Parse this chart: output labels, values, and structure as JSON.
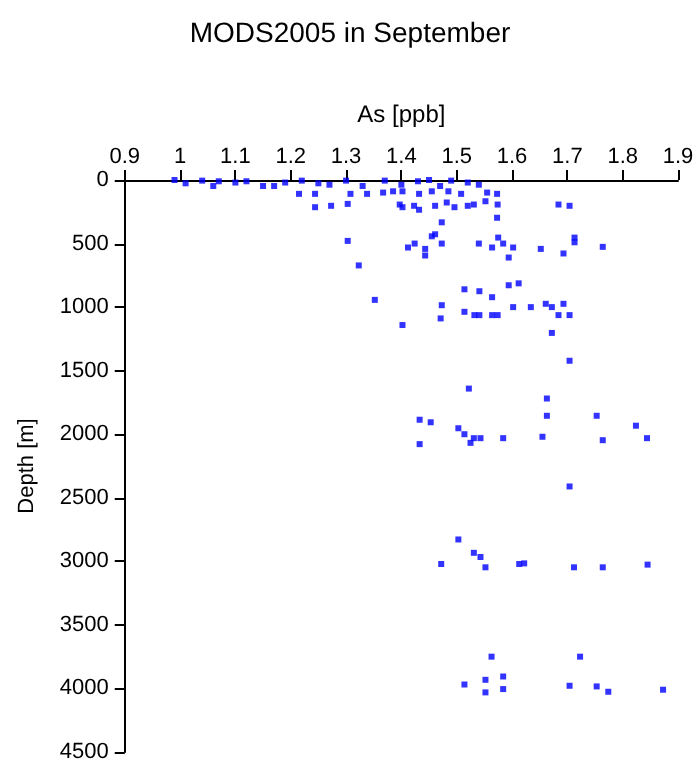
{
  "chart_data": {
    "type": "scatter",
    "title": "MODS2005 in September",
    "xlabel": "As [ppb]",
    "ylabel": "Depth [m]",
    "xlim": [
      0.9,
      1.9
    ],
    "xticks": [
      0.9,
      1,
      1.1,
      1.2,
      1.3,
      1.4,
      1.5,
      1.6,
      1.7,
      1.8,
      1.9
    ],
    "ylim": [
      4500,
      0
    ],
    "yticks": [
      0,
      500,
      1000,
      1500,
      2000,
      2500,
      3000,
      3500,
      4000,
      4500
    ],
    "grid": false,
    "marker": "square",
    "series": [
      {
        "color": "#0000ff",
        "x": [
          0.99,
          1.01,
          1.04,
          1.06,
          1.07,
          1.1,
          1.12,
          1.15,
          1.17,
          1.19,
          1.22,
          1.25,
          1.27,
          1.3,
          1.33,
          1.37,
          1.4,
          1.43,
          1.45,
          1.47,
          1.49,
          1.52,
          1.54,
          1.215,
          1.244,
          1.308,
          1.338,
          1.367,
          1.385,
          1.402,
          1.432,
          1.455,
          1.485,
          1.508,
          1.555,
          1.573,
          1.244,
          1.273,
          1.303,
          1.397,
          1.402,
          1.423,
          1.432,
          1.461,
          1.482,
          1.496,
          1.52,
          1.531,
          1.552,
          1.574,
          1.684,
          1.704,
          1.473,
          1.573,
          1.461,
          1.455,
          1.473,
          1.303,
          1.412,
          1.424,
          1.443,
          1.443,
          1.54,
          1.564,
          1.575,
          1.584,
          1.602,
          1.594,
          1.652,
          1.693,
          1.713,
          1.713,
          1.764,
          1.323,
          1.352,
          1.514,
          1.541,
          1.594,
          1.612,
          1.564,
          1.473,
          1.471,
          1.514,
          1.532,
          1.541,
          1.564,
          1.574,
          1.602,
          1.634,
          1.661,
          1.672,
          1.693,
          1.684,
          1.704,
          1.402,
          1.672,
          1.704,
          1.522,
          1.663,
          1.663,
          1.753,
          1.824,
          1.844,
          1.433,
          1.453,
          1.433,
          1.503,
          1.514,
          1.531,
          1.543,
          1.525,
          1.584,
          1.655,
          1.764,
          1.704,
          1.503,
          1.531,
          1.543,
          1.472,
          1.552,
          1.613,
          1.622,
          1.712,
          1.764,
          1.845,
          1.563,
          1.723,
          1.514,
          1.552,
          1.584,
          1.552,
          1.584,
          1.704,
          1.753,
          1.774,
          1.873
        ],
        "values": [
          0,
          26,
          5,
          47,
          10,
          20,
          10,
          47,
          47,
          20,
          5,
          26,
          37,
          5,
          47,
          5,
          37,
          10,
          0,
          47,
          5,
          20,
          37,
          109,
          109,
          109,
          109,
          99,
          89,
          89,
          109,
          89,
          89,
          109,
          99,
          109,
          214,
          203,
          188,
          193,
          214,
          203,
          234,
          203,
          177,
          214,
          203,
          193,
          167,
          193,
          193,
          203,
          333,
          297,
          427,
          443,
          500,
          479,
          531,
          500,
          542,
          594,
          500,
          531,
          453,
          500,
          531,
          610,
          542,
          578,
          453,
          490,
          526,
          672,
          943,
          860,
          875,
          828,
          813,
          922,
          985,
          1089,
          1037,
          1063,
          1063,
          1063,
          1063,
          1000,
          1000,
          974,
          1000,
          974,
          1063,
          1063,
          1141,
          1203,
          1422,
          1641,
          1719,
          1855,
          1855,
          1933,
          2031,
          1886,
          1906,
          2078,
          1953,
          2000,
          2031,
          2031,
          2068,
          2031,
          2020,
          2047,
          2411,
          2828,
          2933,
          2966,
          3021,
          3047,
          3021,
          3016,
          3047,
          3047,
          3026,
          3750,
          3750,
          3969,
          3932,
          3906,
          4031,
          4005,
          3979,
          3984,
          4026,
          4010
        ]
      }
    ]
  }
}
